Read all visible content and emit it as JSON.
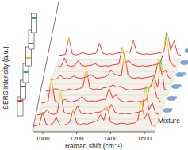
{
  "chart_data": {
    "type": "line",
    "x_label": "Raman shift (cm⁻¹)",
    "y_label": "SERS Intensity (a.u.)",
    "color": "#e8261e",
    "tick_labels": "x",
    "xlim": [
      940,
      1660
    ],
    "xticks": [
      1000,
      1200,
      1400,
      1600
    ],
    "ylim": [
      0,
      100
    ],
    "x": [
      940,
      960,
      980,
      1000,
      1020,
      1040,
      1060,
      1080,
      1100,
      1120,
      1140,
      1160,
      1180,
      1200,
      1220,
      1240,
      1260,
      1280,
      1300,
      1320,
      1340,
      1360,
      1380,
      1400,
      1420,
      1440,
      1460,
      1480,
      1500,
      1520,
      1540,
      1560,
      1580,
      1600,
      1620,
      1640,
      1660
    ],
    "series": [
      {
        "name": "Mixture",
        "values": [
          4,
          5,
          7,
          30,
          8,
          6,
          9,
          20,
          7,
          6,
          8,
          12,
          35,
          10,
          7,
          9,
          8,
          10,
          12,
          14,
          25,
          15,
          40,
          12,
          9,
          8,
          10,
          9,
          8,
          9,
          10,
          14,
          50,
          18,
          30,
          8,
          5
        ]
      },
      {
        "values": [
          3,
          4,
          5,
          12,
          5,
          4,
          6,
          45,
          8,
          5,
          6,
          7,
          20,
          6,
          5,
          6,
          5,
          7,
          8,
          9,
          15,
          10,
          22,
          8,
          6,
          5,
          6,
          5,
          6,
          7,
          8,
          10,
          55,
          12,
          25,
          6,
          4
        ]
      },
      {
        "values": [
          3,
          4,
          6,
          50,
          7,
          5,
          5,
          10,
          6,
          5,
          7,
          9,
          15,
          8,
          6,
          7,
          6,
          8,
          9,
          10,
          30,
          12,
          18,
          9,
          6,
          5,
          7,
          6,
          5,
          6,
          7,
          9,
          35,
          40,
          15,
          6,
          4
        ]
      },
      {
        "values": [
          3,
          4,
          5,
          8,
          5,
          4,
          5,
          7,
          5,
          6,
          8,
          10,
          45,
          9,
          6,
          7,
          6,
          9,
          10,
          12,
          14,
          10,
          12,
          8,
          6,
          5,
          6,
          6,
          7,
          8,
          9,
          12,
          30,
          10,
          60,
          7,
          4
        ]
      },
      {
        "values": [
          3,
          3,
          4,
          10,
          5,
          4,
          5,
          9,
          6,
          5,
          6,
          8,
          12,
          7,
          5,
          6,
          7,
          10,
          20,
          12,
          10,
          9,
          50,
          10,
          6,
          5,
          6,
          5,
          6,
          7,
          8,
          10,
          40,
          12,
          20,
          6,
          3
        ]
      },
      {
        "values": [
          3,
          4,
          5,
          20,
          6,
          5,
          6,
          15,
          7,
          5,
          6,
          7,
          10,
          6,
          5,
          6,
          5,
          7,
          8,
          9,
          40,
          12,
          15,
          8,
          6,
          5,
          6,
          5,
          6,
          7,
          8,
          10,
          25,
          65,
          15,
          6,
          4
        ]
      },
      {
        "values": [
          3,
          4,
          5,
          35,
          6,
          4,
          5,
          8,
          6,
          5,
          6,
          7,
          25,
          7,
          5,
          6,
          5,
          7,
          8,
          9,
          10,
          8,
          30,
          8,
          6,
          5,
          6,
          5,
          6,
          7,
          8,
          10,
          45,
          12,
          30,
          6,
          3
        ]
      }
    ]
  }
}
